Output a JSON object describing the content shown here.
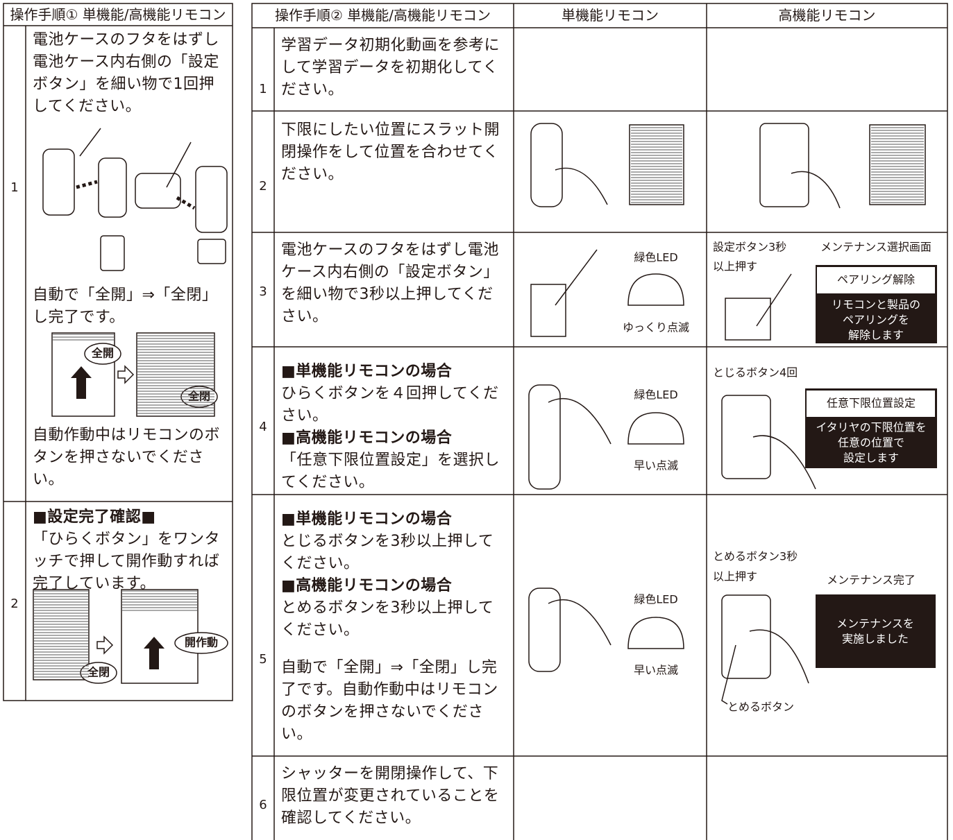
{
  "table1": {
    "header": "操作手順① 単機能/高機能リモコン",
    "rows": [
      {
        "number": "1",
        "steps": [
          "電池ケースのフタをはずし電池ケース内右側の「設定ボタン」を細い物で1回押してください。",
          "自動で「全開」⇒「全閉」し完了です。",
          "自動作動中はリモコンのボタンを押さないでください。"
        ],
        "labels": [
          "全開",
          "全閉"
        ]
      },
      {
        "number": "2",
        "title": "■設定完了確認■",
        "text": "「ひらくボタン」をワンタッチで押して開作動すれば完了しています。",
        "labels": [
          "全閉",
          "開作動"
        ]
      }
    ]
  },
  "table2": {
    "headers": [
      "操作手順② 単機能/高機能リモコン",
      "単機能リモコン",
      "高機能リモコン"
    ],
    "rows": [
      {
        "number": "1",
        "text": [
          "学習データ初期化動画を参考にして学習データを初期化してください。"
        ]
      },
      {
        "number": "2",
        "text": [
          "下限にしたい位置にスラット開閉操作をして位置を合わせてください。"
        ]
      },
      {
        "number": "3",
        "text": [
          "電池ケースのフタをはずし電池ケース内右側の「設定ボタン」を細い物で3秒以上押してください。"
        ],
        "single": [
          "緑色LED",
          "ゆっくり点滅"
        ],
        "high": {
          "caption": [
            "設定ボタン3秒",
            "以上押す"
          ],
          "screen_title": "メンテナンス選択画面",
          "menu": "ペアリング解除",
          "message": [
            "リモコンと製品の",
            "ペアリングを",
            "解除します"
          ]
        }
      },
      {
        "number": "4",
        "text": [
          "■単機能リモコンの場合",
          "ひらくボタンを４回押してください。",
          "■高機能リモコンの場合",
          "「任意下限位置設定」を選択してください。"
        ],
        "single": [
          "緑色LED",
          "早い点滅"
        ],
        "high": {
          "caption": [
            "とじるボタン4回"
          ],
          "menu": "任意下限位置設定",
          "message": [
            "イタリヤの下限位置を",
            "任意の位置で",
            "設定します"
          ]
        }
      },
      {
        "number": "5",
        "text": [
          "■単機能リモコンの場合",
          "とじるボタンを3秒以上押してください。",
          "■高機能リモコンの場合",
          "とめるボタンを3秒以上押してください。",
          "自動で「全開」⇒「全閉」し完了です。自動作動中はリモコンのボタンを押さないでください。"
        ],
        "single": [
          "緑色LED",
          "早い点滅"
        ],
        "high": {
          "caption": [
            "とめるボタン3秒",
            "以上押す"
          ],
          "screen_title": "メンテナンス完了",
          "message": [
            "メンテナンスを",
            "実施しました"
          ],
          "pointer": "とめるボタン"
        }
      },
      {
        "number": "6",
        "text": [
          "シャッターを開閉操作して、下限位置が変更されていることを確認してください。"
        ]
      }
    ]
  }
}
